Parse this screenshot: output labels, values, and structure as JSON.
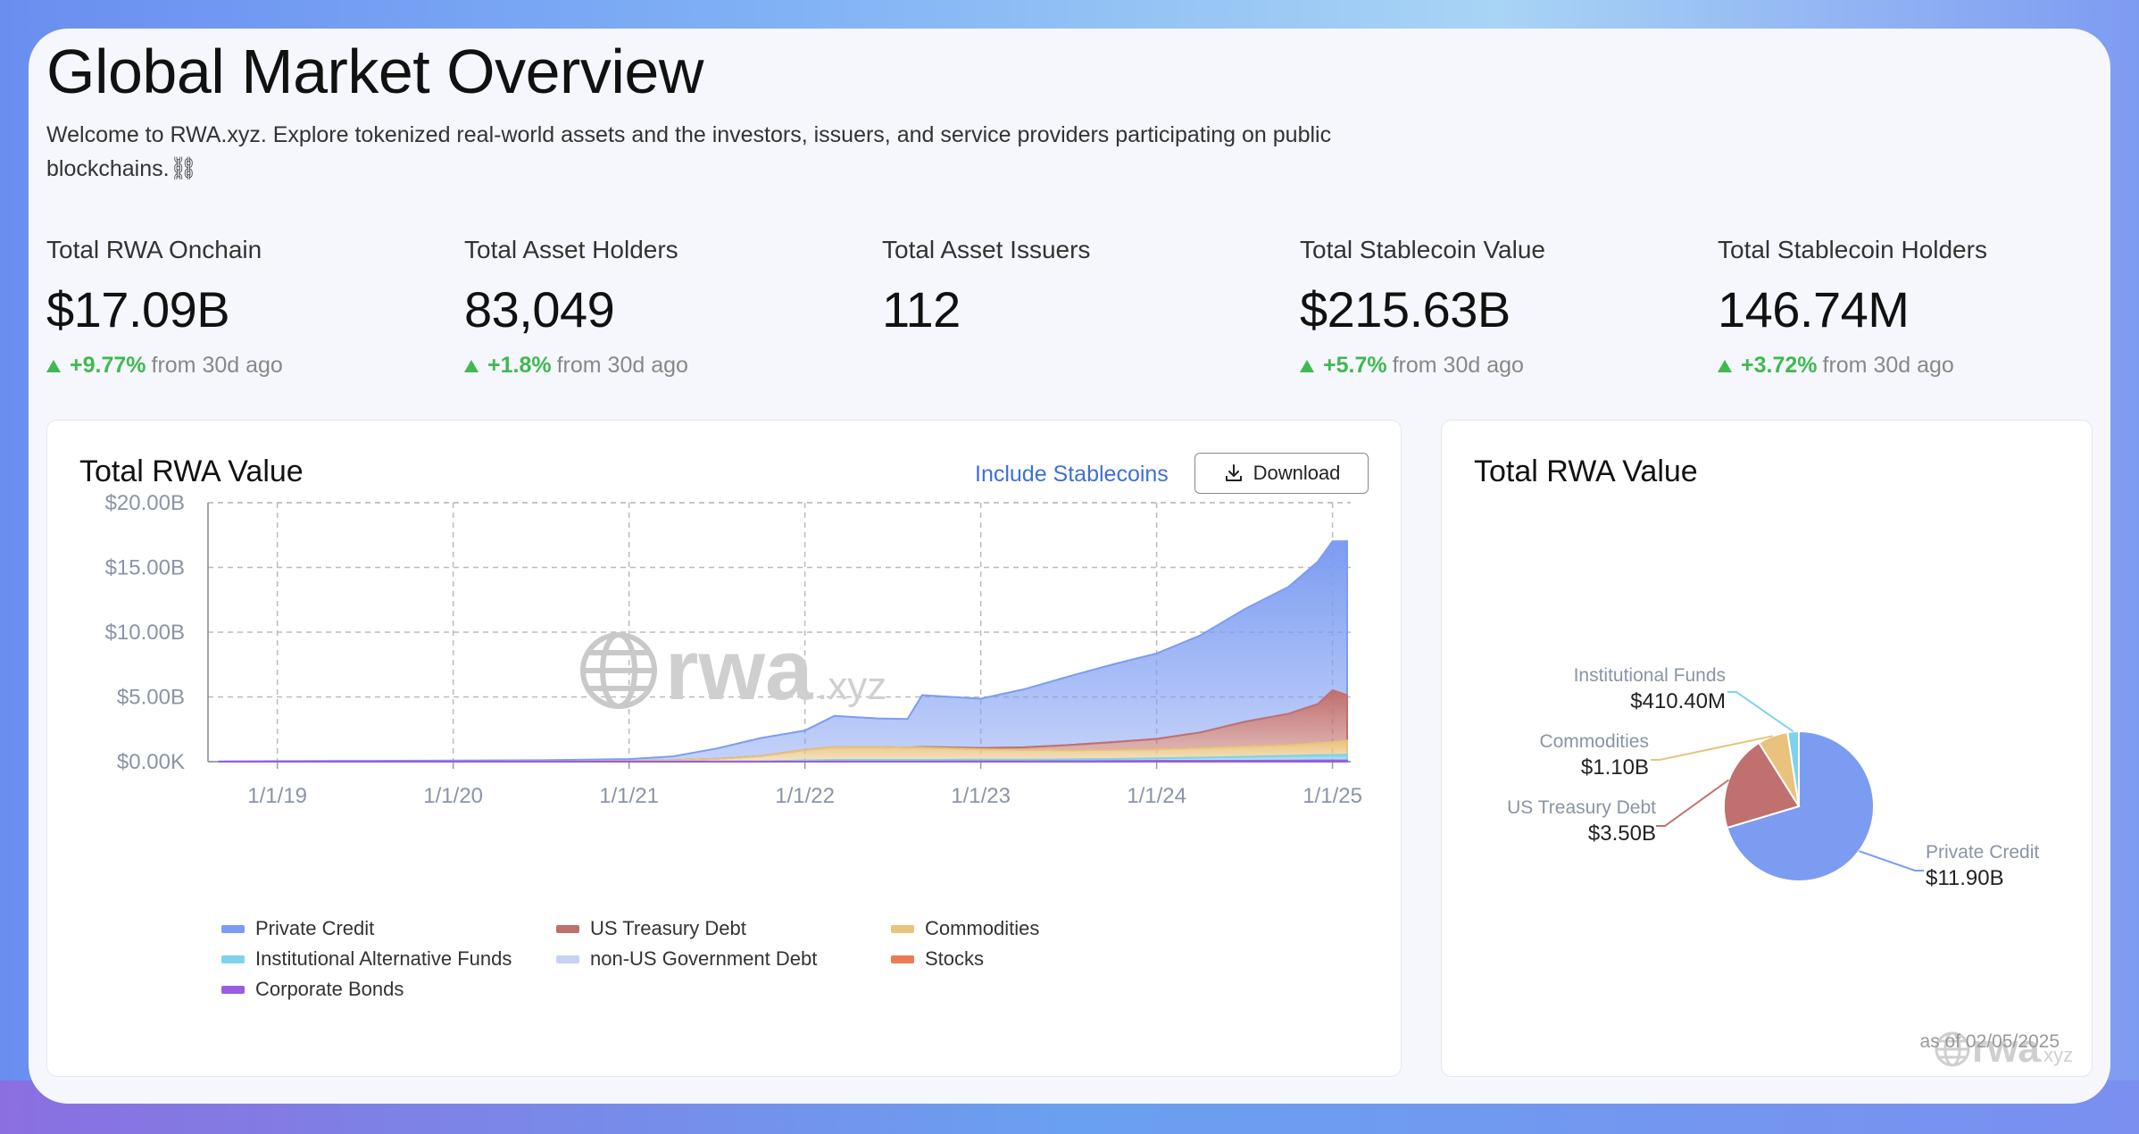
{
  "header": {
    "title": "Global Market Overview",
    "welcome": "Welcome to RWA.xyz. Explore tokenized real-world assets and the investors, issuers, and service providers participating on public blockchains.⛓"
  },
  "stats": [
    {
      "label": "Total RWA Onchain",
      "value": "$17.09B",
      "pct": "+9.77%",
      "suffix": "from 30d ago"
    },
    {
      "label": "Total Asset Holders",
      "value": "83,049",
      "pct": "+1.8%",
      "suffix": "from 30d ago"
    },
    {
      "label": "Total Asset Issuers",
      "value": "112"
    },
    {
      "label": "Total Stablecoin Value",
      "value": "$215.63B",
      "pct": "+5.7%",
      "suffix": "from 30d ago"
    },
    {
      "label": "Total Stablecoin Holders",
      "value": "146.74M",
      "pct": "+3.72%",
      "suffix": "from 30d ago"
    }
  ],
  "area_panel": {
    "title": "Total RWA Value",
    "include_link": "Include Stablecoins",
    "download_label": "Download",
    "watermark_main": "rwa",
    "watermark_sub": ".xyz"
  },
  "pie_panel": {
    "title": "Total RWA Value",
    "watermark_main": "rwa",
    "watermark_sub": ".xyz",
    "as_of": "as of 02/05/2025"
  },
  "colors": {
    "private_credit": "#7c9cf2",
    "us_treasury": "#c0706e",
    "commodities": "#e9c27d",
    "institutional": "#7ed3ec",
    "non_us_gov": "#c7d2f3",
    "stocks": "#ee7a55",
    "corporate_bonds": "#9a5ce0",
    "positive": "#3fb950"
  },
  "chart_data": [
    {
      "type": "area",
      "title": "Total RWA Value",
      "y_ticks": [
        "$0.00K",
        "$5.00B",
        "$10.00B",
        "$15.00B",
        "$20.00B"
      ],
      "x_ticks": [
        "1/1/19",
        "1/1/20",
        "1/1/21",
        "1/1/22",
        "1/1/23",
        "1/1/24",
        "1/1/25"
      ],
      "ylim": [
        0,
        20
      ],
      "y_unit": "B",
      "stacked": true,
      "grid": true,
      "x": [
        "2018-09",
        "2019-01",
        "2019-07",
        "2020-01",
        "2020-07",
        "2021-01",
        "2021-04",
        "2021-07",
        "2021-10",
        "2022-01",
        "2022-03",
        "2022-06",
        "2022-08",
        "2022-09",
        "2023-01",
        "2023-04",
        "2023-07",
        "2023-10",
        "2024-01",
        "2024-04",
        "2024-07",
        "2024-10",
        "2024-12",
        "2025-01",
        "2025-02"
      ],
      "series": [
        {
          "name": "Corporate Bonds",
          "color_key": "corporate_bonds",
          "values": [
            0,
            0,
            0,
            0,
            0,
            0,
            0,
            0,
            0,
            0,
            0.01,
            0.01,
            0.01,
            0.01,
            0.02,
            0.02,
            0.03,
            0.04,
            0.05,
            0.05,
            0.06,
            0.07,
            0.08,
            0.08,
            0.08
          ]
        },
        {
          "name": "Stocks",
          "color_key": "stocks",
          "values": [
            0,
            0,
            0,
            0,
            0,
            0,
            0,
            0,
            0,
            0,
            0,
            0,
            0,
            0,
            0,
            0,
            0,
            0,
            0.01,
            0.01,
            0.01,
            0.01,
            0.01,
            0.01,
            0.01
          ]
        },
        {
          "name": "non-US Government Debt",
          "color_key": "non_us_gov",
          "values": [
            0,
            0,
            0,
            0,
            0,
            0,
            0,
            0,
            0,
            0,
            0,
            0,
            0,
            0,
            0,
            0,
            0,
            0,
            0,
            0,
            0.01,
            0.02,
            0.03,
            0.03,
            0.03
          ]
        },
        {
          "name": "Institutional Alternative Funds",
          "color_key": "institutional",
          "values": [
            0,
            0,
            0,
            0,
            0,
            0,
            0.01,
            0.02,
            0.03,
            0.1,
            0.12,
            0.13,
            0.13,
            0.13,
            0.14,
            0.14,
            0.15,
            0.17,
            0.2,
            0.25,
            0.3,
            0.35,
            0.38,
            0.4,
            0.41
          ]
        },
        {
          "name": "Commodities",
          "color_key": "commodities",
          "values": [
            0,
            0,
            0,
            0,
            0.01,
            0.05,
            0.1,
            0.2,
            0.4,
            0.8,
            1.0,
            1.0,
            0.95,
            0.95,
            0.8,
            0.75,
            0.7,
            0.7,
            0.7,
            0.75,
            0.8,
            0.85,
            0.95,
            1.0,
            1.1
          ]
        },
        {
          "name": "US Treasury Debt",
          "color_key": "us_treasury",
          "values": [
            0,
            0,
            0,
            0,
            0,
            0,
            0,
            0,
            0,
            0,
            0,
            0,
            0,
            0.05,
            0.1,
            0.2,
            0.4,
            0.6,
            0.8,
            1.2,
            1.9,
            2.4,
            3.0,
            4.0,
            3.5
          ]
        },
        {
          "name": "Private Credit",
          "color_key": "private_credit",
          "values": [
            0.02,
            0.04,
            0.06,
            0.08,
            0.1,
            0.15,
            0.3,
            0.8,
            1.4,
            1.5,
            2.4,
            2.2,
            2.2,
            4.0,
            3.8,
            4.5,
            5.3,
            6.0,
            6.6,
            7.5,
            8.7,
            9.8,
            11.0,
            11.5,
            11.9
          ]
        }
      ],
      "legend": [
        "Private Credit",
        "US Treasury Debt",
        "Commodities",
        "Institutional Alternative Funds",
        "non-US Government Debt",
        "Stocks",
        "Corporate Bonds"
      ],
      "legend_placement": "bottom-left"
    },
    {
      "type": "pie",
      "title": "Total RWA Value",
      "slices": [
        {
          "name": "Private Credit",
          "value": 11.9,
          "label": "$11.90B",
          "color_key": "private_credit"
        },
        {
          "name": "US Treasury Debt",
          "value": 3.5,
          "label": "$3.50B",
          "color_key": "us_treasury"
        },
        {
          "name": "Commodities",
          "value": 1.1,
          "label": "$1.10B",
          "color_key": "commodities"
        },
        {
          "name": "Institutional Funds",
          "value": 0.4104,
          "label": "$410.40M",
          "color_key": "institutional"
        }
      ]
    }
  ]
}
